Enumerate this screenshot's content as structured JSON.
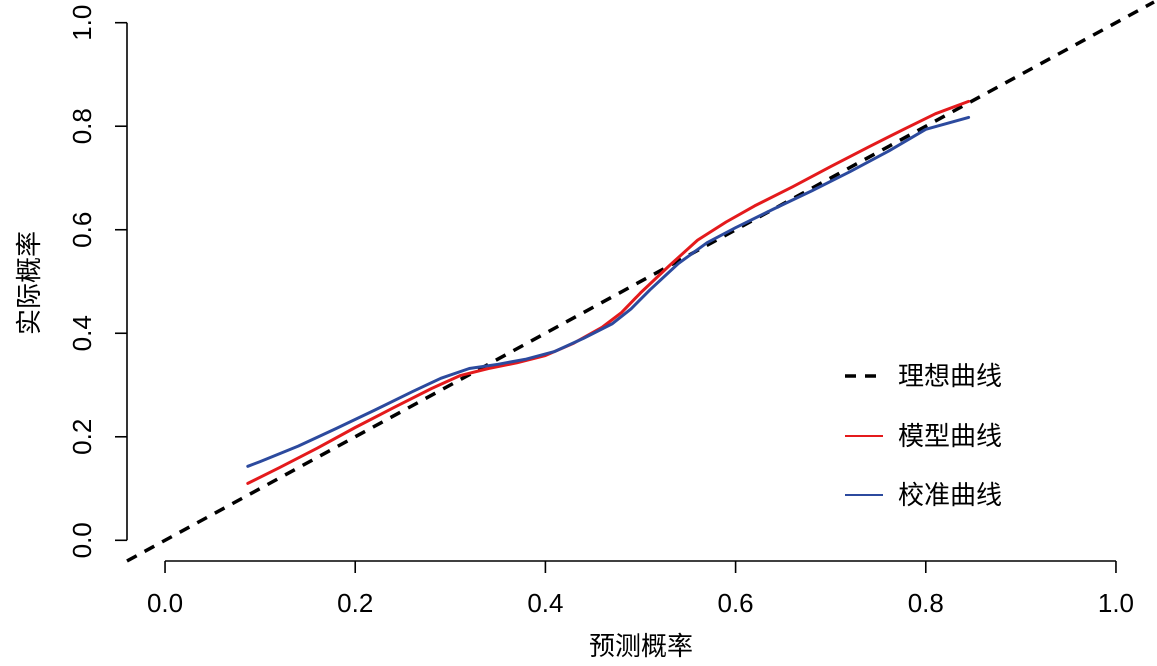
{
  "chart_data": {
    "type": "line",
    "xlabel": "预测概率",
    "ylabel": "实际概率",
    "xlim": [
      -0.04,
      1.04
    ],
    "ylim": [
      -0.04,
      1.04
    ],
    "x_ticks": [
      "0.0",
      "0.2",
      "0.4",
      "0.6",
      "0.8",
      "1.0"
    ],
    "y_ticks": [
      "0.0",
      "0.2",
      "0.4",
      "0.6",
      "0.8",
      "1.0"
    ],
    "grid": false,
    "legend_position": "right",
    "series": [
      {
        "name": "理想曲线",
        "color": "#000000",
        "dash": "dashed",
        "x": [
          -0.04,
          1.04
        ],
        "y": [
          -0.04,
          1.04
        ]
      },
      {
        "name": "模型曲线",
        "color": "#e41a1c",
        "dash": "solid",
        "x": [
          0.087,
          0.12,
          0.16,
          0.2,
          0.24,
          0.28,
          0.31,
          0.34,
          0.37,
          0.4,
          0.43,
          0.46,
          0.48,
          0.5,
          0.53,
          0.56,
          0.59,
          0.62,
          0.66,
          0.7,
          0.74,
          0.78,
          0.81,
          0.845
        ],
        "y": [
          0.11,
          0.14,
          0.178,
          0.218,
          0.256,
          0.293,
          0.318,
          0.332,
          0.343,
          0.357,
          0.381,
          0.412,
          0.44,
          0.478,
          0.53,
          0.58,
          0.615,
          0.646,
          0.683,
          0.722,
          0.76,
          0.797,
          0.824,
          0.848
        ]
      },
      {
        "name": "校准曲线",
        "color": "#2c4a9e",
        "dash": "solid",
        "x": [
          0.087,
          0.1,
          0.14,
          0.18,
          0.22,
          0.26,
          0.29,
          0.32,
          0.35,
          0.38,
          0.41,
          0.44,
          0.47,
          0.49,
          0.51,
          0.54,
          0.57,
          0.6,
          0.64,
          0.68,
          0.72,
          0.76,
          0.8,
          0.845
        ],
        "y": [
          0.143,
          0.152,
          0.182,
          0.216,
          0.251,
          0.287,
          0.313,
          0.332,
          0.34,
          0.35,
          0.365,
          0.39,
          0.418,
          0.447,
          0.484,
          0.535,
          0.575,
          0.604,
          0.64,
          0.675,
          0.712,
          0.751,
          0.794,
          0.817
        ]
      }
    ]
  }
}
